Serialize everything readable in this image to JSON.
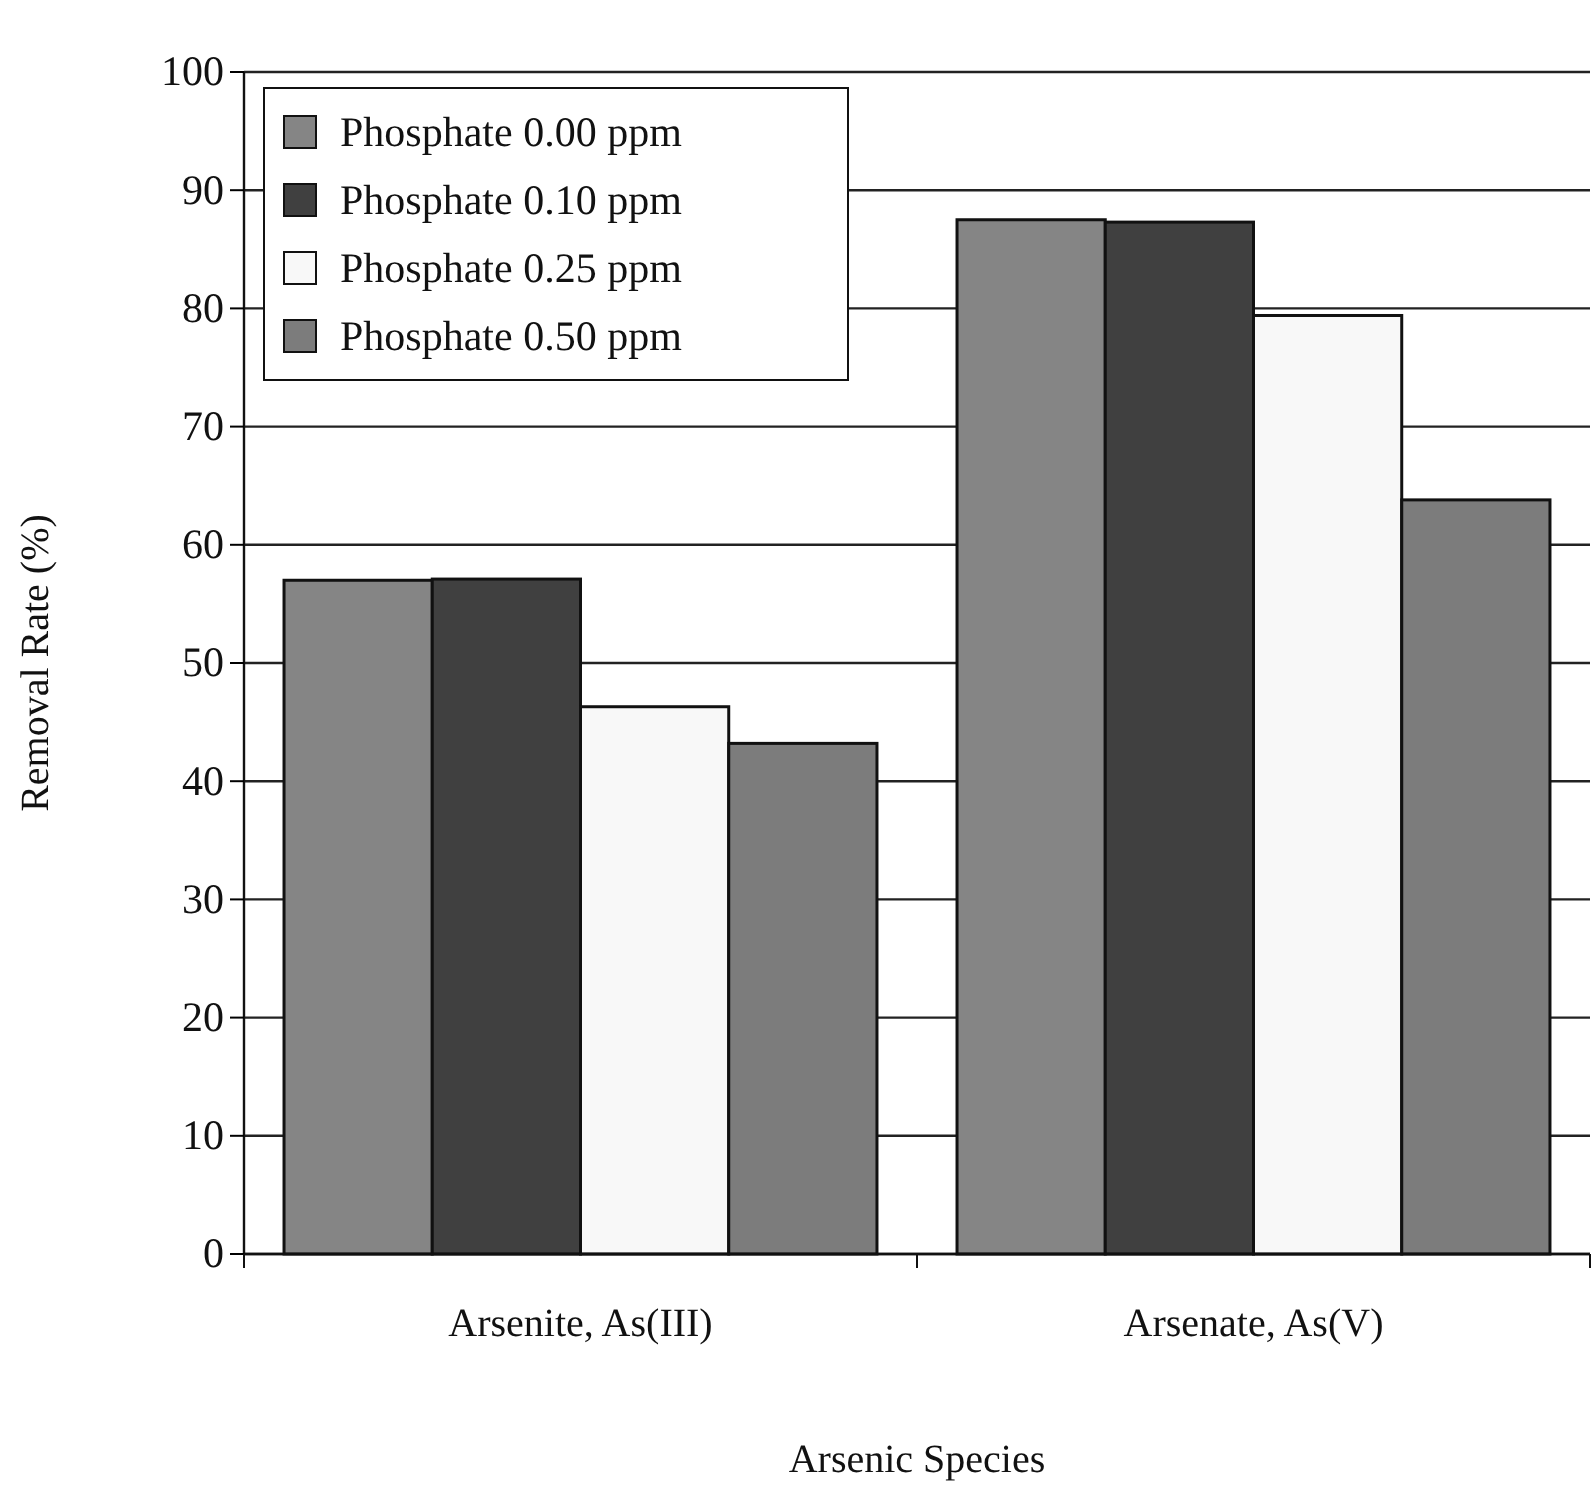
{
  "chart_data": {
    "type": "bar",
    "xlabel": "Arsenic Species",
    "ylabel": "Removal Rate (%)",
    "categories": [
      "Arsenite, As(III)",
      "Arsenate, As(V)"
    ],
    "series": [
      {
        "name": "Phosphate 0.00 ppm",
        "color": "#858585",
        "values": [
          57,
          87.5
        ]
      },
      {
        "name": "Phosphate 0.10 ppm",
        "color": "#404040",
        "values": [
          57.1,
          87.3
        ]
      },
      {
        "name": "Phosphate 0.25 ppm",
        "color": "#f8f8f8",
        "values": [
          46.3,
          79.4
        ]
      },
      {
        "name": "Phosphate 0.50 ppm",
        "color": "#7c7c7c",
        "values": [
          43.2,
          63.8
        ]
      }
    ],
    "ylim": [
      0,
      100
    ],
    "yticks": [
      0,
      10,
      20,
      30,
      40,
      50,
      60,
      70,
      80,
      90,
      100
    ],
    "grid": "y",
    "legend": "top left"
  }
}
